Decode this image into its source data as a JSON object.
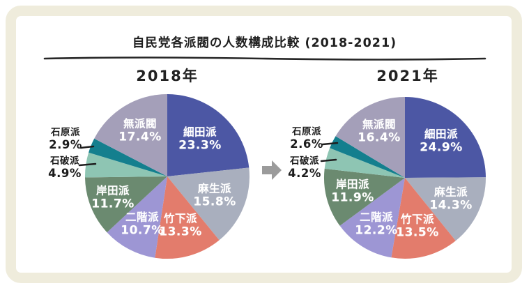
{
  "title": "自民党各派閥の人数構成比較 (2018-2021)",
  "arrow": {
    "name": "right-arrow",
    "color": "#9b9b9b"
  },
  "frame_color": "#efecdc",
  "text_color": "#1f1f1f",
  "chart_data": [
    {
      "type": "pie",
      "title": "2018年",
      "start_angle_deg": 0,
      "direction": "clockwise",
      "legend_position": "on-slice",
      "slices": [
        {
          "label": "細田派",
          "value": 23.3,
          "display": "23.3%",
          "color": "#4c57a4",
          "label_placement": "inside"
        },
        {
          "label": "麻生派",
          "value": 15.8,
          "display": "15.8%",
          "color": "#a9afbe",
          "label_placement": "inside"
        },
        {
          "label": "竹下派",
          "value": 13.3,
          "display": "13.3%",
          "color": "#e37c6c",
          "label_placement": "inside"
        },
        {
          "label": "二階派",
          "value": 10.7,
          "display": "10.7%",
          "color": "#9d96d4",
          "label_placement": "inside"
        },
        {
          "label": "岸田派",
          "value": 11.7,
          "display": "11.7%",
          "color": "#6b8a70",
          "label_placement": "inside"
        },
        {
          "label": "石破派",
          "value": 4.9,
          "display": "4.9%",
          "color": "#8ec5b3",
          "label_placement": "outside"
        },
        {
          "label": "石原派",
          "value": 2.9,
          "display": "2.9%",
          "color": "#147f8e",
          "label_placement": "outside"
        },
        {
          "label": "無派閥",
          "value": 17.4,
          "display": "17.4%",
          "color": "#a49fb9",
          "label_placement": "inside"
        }
      ]
    },
    {
      "type": "pie",
      "title": "2021年",
      "start_angle_deg": 0,
      "direction": "clockwise",
      "legend_position": "on-slice",
      "slices": [
        {
          "label": "細田派",
          "value": 24.9,
          "display": "24.9%",
          "color": "#4c57a4",
          "label_placement": "inside"
        },
        {
          "label": "麻生派",
          "value": 14.3,
          "display": "14.3%",
          "color": "#a9afbe",
          "label_placement": "inside"
        },
        {
          "label": "竹下派",
          "value": 13.5,
          "display": "13.5%",
          "color": "#e37c6c",
          "label_placement": "inside"
        },
        {
          "label": "二階派",
          "value": 12.2,
          "display": "12.2%",
          "color": "#9d96d4",
          "label_placement": "inside"
        },
        {
          "label": "岸田派",
          "value": 11.9,
          "display": "11.9%",
          "color": "#6b8a70",
          "label_placement": "inside"
        },
        {
          "label": "石破派",
          "value": 4.2,
          "display": "4.2%",
          "color": "#8ec5b3",
          "label_placement": "outside"
        },
        {
          "label": "石原派",
          "value": 2.6,
          "display": "2.6%",
          "color": "#147f8e",
          "label_placement": "outside"
        },
        {
          "label": "無派閥",
          "value": 16.4,
          "display": "16.4%",
          "color": "#a49fb9",
          "label_placement": "inside"
        }
      ]
    }
  ]
}
